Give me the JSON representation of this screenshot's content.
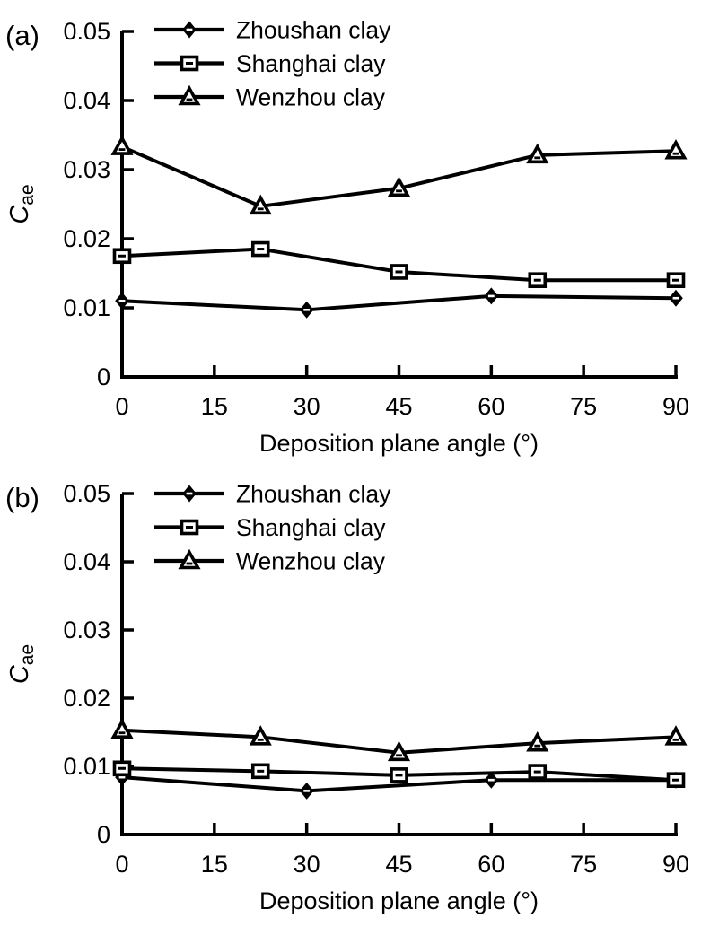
{
  "figure": {
    "background": "#ffffff",
    "line_color": "#000000",
    "panel_count": 2
  },
  "chart_data": [
    {
      "type": "line",
      "panel_label": "(a)",
      "xlabel": "Deposition plane angle (°)",
      "ylabel_main": "C",
      "ylabel_sub": "ae",
      "xlim": [
        0,
        90
      ],
      "ylim": [
        0,
        0.05
      ],
      "x_ticks": [
        0,
        15,
        30,
        45,
        60,
        75,
        90
      ],
      "x_tick_labels": [
        "0",
        "15",
        "30",
        "45",
        "60",
        "75",
        "90"
      ],
      "y_ticks": [
        0,
        0.01,
        0.02,
        0.03,
        0.04,
        0.05
      ],
      "y_tick_labels": [
        "0",
        "0.01",
        "0.02",
        "0.03",
        "0.04",
        "0.05"
      ],
      "grid": false,
      "legend_position": "upper-left-inside",
      "series": [
        {
          "name": "Zhoushan clay",
          "marker": "filled-diamond",
          "x": [
            0,
            30,
            60,
            90
          ],
          "y": [
            0.011,
            0.0097,
            0.0117,
            0.0114
          ]
        },
        {
          "name": "Shanghai clay",
          "marker": "open-square",
          "x": [
            0,
            22.5,
            45,
            67.5,
            90
          ],
          "y": [
            0.0175,
            0.0185,
            0.0152,
            0.014,
            0.014
          ]
        },
        {
          "name": "Wenzhou clay",
          "marker": "open-triangle",
          "x": [
            0,
            22.5,
            45,
            67.5,
            90
          ],
          "y": [
            0.0333,
            0.0247,
            0.0273,
            0.0321,
            0.0327
          ]
        }
      ]
    },
    {
      "type": "line",
      "panel_label": "(b)",
      "xlabel": "Deposition plane angle (°)",
      "ylabel_main": "C",
      "ylabel_sub": "ae",
      "xlim": [
        0,
        90
      ],
      "ylim": [
        0,
        0.05
      ],
      "x_ticks": [
        0,
        15,
        30,
        45,
        60,
        75,
        90
      ],
      "x_tick_labels": [
        "0",
        "15",
        "30",
        "45",
        "60",
        "75",
        "90"
      ],
      "y_ticks": [
        0,
        0.01,
        0.02,
        0.03,
        0.04,
        0.05
      ],
      "y_tick_labels": [
        "0",
        "0.01",
        "0.02",
        "0.03",
        "0.04",
        "0.05"
      ],
      "grid": false,
      "legend_position": "upper-left-inside",
      "series": [
        {
          "name": "Zhoushan clay",
          "marker": "filled-diamond",
          "x": [
            0,
            30,
            60,
            90
          ],
          "y": [
            0.0084,
            0.0064,
            0.008,
            0.008
          ]
        },
        {
          "name": "Shanghai clay",
          "marker": "open-square",
          "x": [
            0,
            22.5,
            45,
            67.5,
            90
          ],
          "y": [
            0.0097,
            0.0093,
            0.0087,
            0.0092,
            0.008
          ]
        },
        {
          "name": "Wenzhou clay",
          "marker": "open-triangle",
          "x": [
            0,
            22.5,
            45,
            67.5,
            90
          ],
          "y": [
            0.0153,
            0.0143,
            0.012,
            0.0134,
            0.0143
          ]
        }
      ]
    }
  ]
}
